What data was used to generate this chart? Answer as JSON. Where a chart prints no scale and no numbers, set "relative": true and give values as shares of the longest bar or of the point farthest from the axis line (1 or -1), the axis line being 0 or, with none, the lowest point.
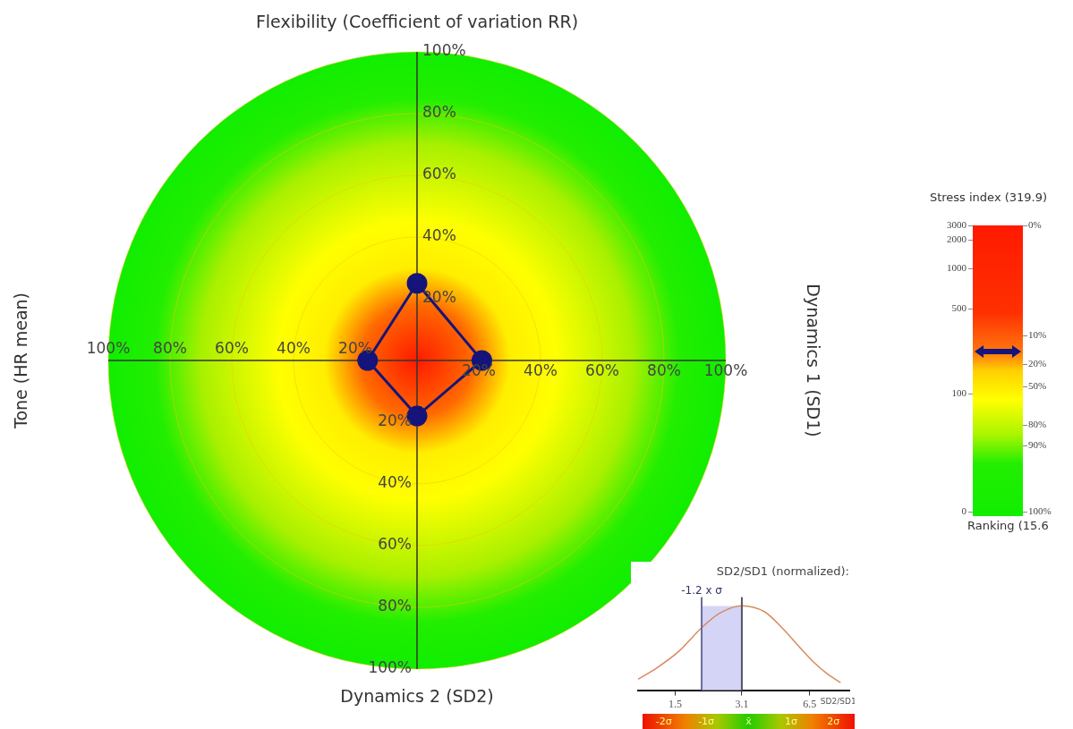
{
  "chart_data": [
    {
      "type": "radar",
      "categories": [
        "Flexibility (Coefficient of variation RR)",
        "Dynamics 1 (SD1)",
        "Dynamics 2 (SD2)",
        "Tone (HR mean)"
      ],
      "series": [
        {
          "color": "#14147a",
          "values": [
            25,
            21,
            18,
            16
          ]
        }
      ],
      "ylim": [
        0,
        100
      ],
      "yticks": [
        {
          "value": 20,
          "label": "20%"
        },
        {
          "value": 40,
          "label": "40%"
        },
        {
          "value": 60,
          "label": "60%"
        },
        {
          "value": 80,
          "label": "80%"
        },
        {
          "value": 100,
          "label": "100%"
        }
      ],
      "grid": true,
      "marker": "circle"
    },
    {
      "type": "other",
      "title": "Stress index (319.9)",
      "xlabel": "Ranking (15.6",
      "annotations": [
        "3000",
        "2000",
        "1000",
        "500",
        "100",
        "0",
        "0%",
        "10%",
        "20%",
        "50%",
        "80%",
        "90%",
        "100%"
      ]
    },
    {
      "type": "line",
      "title": "SD2/SD1 (normalized):",
      "xlabel": "SD2/SD1",
      "relative": true,
      "log": "x",
      "marker": "none",
      "x": [
        1.0,
        1.22,
        1.56,
        2.0,
        2.43,
        3.1,
        3.96,
        4.8,
        5.86,
        6.8,
        7.9,
        9.1
      ],
      "series": [
        {
          "color": "#d98a60",
          "values": [
            0.13,
            0.26,
            0.46,
            0.74,
            0.91,
            1,
            0.93,
            0.74,
            0.5,
            0.33,
            0.19,
            0.09
          ]
        }
      ],
      "xlim": [
        1,
        10
      ],
      "xticks": [
        1.5,
        3.1,
        6.5
      ],
      "ref_lines": [
        {
          "axis": "x",
          "value": 2.0,
          "label": "-1.2 x σ",
          "color": "#6a6a9a"
        },
        {
          "axis": "x",
          "value": 3.1,
          "color": "#555566"
        }
      ],
      "bands": [
        {
          "axis": "x",
          "from": 2.0,
          "to": 3.1,
          "color": "#d4d4f7"
        }
      ],
      "annotations": [
        "-2σ",
        "-1σ",
        "x̄",
        "1σ",
        "2σ"
      ]
    }
  ]
}
